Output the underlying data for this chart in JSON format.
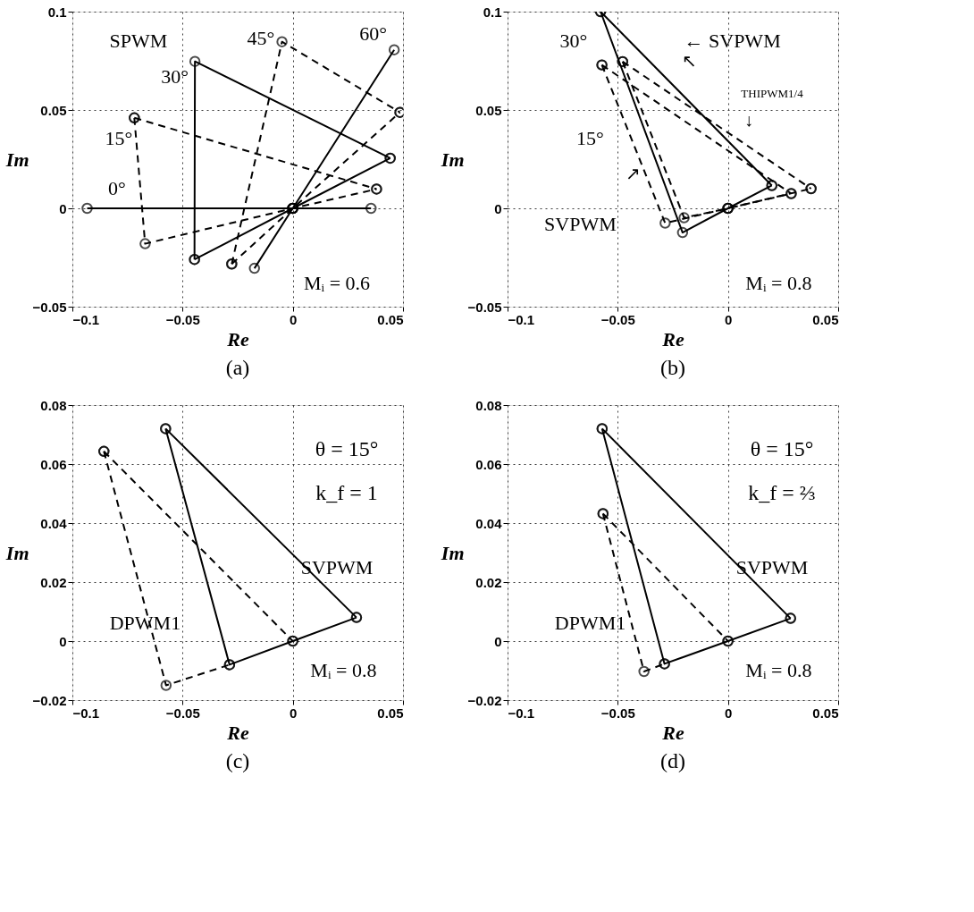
{
  "chart_data": [
    {
      "type": "line",
      "title": "(a)",
      "xlabel": "Re",
      "ylabel": "Im",
      "xlim": [
        -0.1,
        0.05
      ],
      "ylim": [
        -0.05,
        0.1
      ],
      "xticks": [
        -0.1,
        -0.05,
        0,
        0.05
      ],
      "yticks": [
        -0.05,
        0,
        0.05,
        0.1
      ],
      "grid": true,
      "marker": "circle",
      "series": [
        {
          "color": "#000000",
          "line_style": "solid",
          "x": [
            -0.0933,
            0,
            0.0355
          ],
          "values": [
            0,
            0,
            0
          ]
        },
        {
          "color": "#000000",
          "line_style": "dashed",
          "x": [
            -0.0719,
            0.038
          ],
          "values": [
            0.046,
            0.0098
          ]
        },
        {
          "color": "#000000",
          "line_style": "dashed",
          "x": [
            -0.0719,
            -0.067,
            0,
            0.038
          ],
          "values": [
            0.046,
            -0.018,
            0,
            0.0098
          ]
        },
        {
          "color": "#000000",
          "line_style": "solid",
          "x": [
            -0.0446,
            -0.0444,
            0.0442
          ],
          "values": [
            -0.026,
            0.0747,
            0.0255
          ]
        },
        {
          "color": "#000000",
          "line_style": "solid",
          "x": [
            -0.0446,
            0,
            0.0442
          ],
          "values": [
            -0.026,
            0,
            0.0255
          ]
        },
        {
          "color": "#000000",
          "line_style": "dashed",
          "x": [
            -0.0277,
            -0.0049,
            0.0486
          ],
          "values": [
            -0.0283,
            0.0847,
            0.0488
          ]
        },
        {
          "color": "#000000",
          "line_style": "dashed",
          "x": [
            -0.0277,
            0,
            0.0486
          ],
          "values": [
            -0.0283,
            0,
            0.0488
          ]
        },
        {
          "color": "#000000",
          "line_style": "solid",
          "x": [
            -0.0174,
            0,
            0.046
          ],
          "values": [
            -0.0305,
            0,
            0.0806
          ]
        }
      ],
      "annotations": [
        "SPWM",
        "0°",
        "15°",
        "30°",
        "45°",
        "60°",
        "Mᵢ = 0.6"
      ]
    },
    {
      "type": "line",
      "title": "(b)",
      "xlabel": "Re",
      "ylabel": "Im",
      "xlim": [
        -0.1,
        0.05
      ],
      "ylim": [
        -0.05,
        0.1
      ],
      "xticks": [
        -0.1,
        -0.05,
        0,
        0.05
      ],
      "yticks": [
        -0.05,
        0,
        0.05,
        0.1
      ],
      "grid": true,
      "marker": "circle",
      "series": [
        {
          "color": "#000000",
          "line_style": "solid",
          "x": [
            -0.0578,
            0.0199
          ],
          "values": [
            0.1,
            0.0116
          ]
        },
        {
          "color": "#000000",
          "line_style": "solid",
          "x": [
            -0.0578,
            -0.0206,
            0,
            0.0199
          ],
          "values": [
            0.1,
            -0.0123,
            0,
            0.0116
          ]
        },
        {
          "color": "#000000",
          "line_style": "dashed",
          "x": [
            -0.0478,
            0.0377
          ],
          "values": [
            0.0746,
            0.01
          ]
        },
        {
          "color": "#000000",
          "line_style": "dashed",
          "x": [
            -0.0478,
            -0.0199,
            0,
            0.0377
          ],
          "values": [
            0.0746,
            -0.0048,
            0,
            0.01
          ]
        },
        {
          "color": "#000000",
          "line_style": "dashed",
          "x": [
            -0.0572,
            0.0287
          ],
          "values": [
            0.0729,
            0.0075
          ]
        },
        {
          "color": "#000000",
          "line_style": "dashed",
          "x": [
            -0.0572,
            -0.0285,
            0,
            0.0287
          ],
          "values": [
            0.0729,
            -0.0075,
            0,
            0.0075
          ]
        }
      ],
      "annotations": [
        "30°",
        "15°",
        "← SVPWM",
        "↖",
        "THIPWM1/4",
        "↓",
        "↗",
        "SVPWM",
        "Mᵢ = 0.8"
      ]
    },
    {
      "type": "line",
      "title": "(c)",
      "xlabel": "Re",
      "ylabel": "Im",
      "xlim": [
        -0.1,
        0.05
      ],
      "ylim": [
        -0.02,
        0.08
      ],
      "xticks": [
        -0.1,
        -0.05,
        0,
        0.05
      ],
      "yticks": [
        -0.02,
        0,
        0.02,
        0.04,
        0.06,
        0.08
      ],
      "grid": true,
      "marker": "circle",
      "series": [
        {
          "color": "#000000",
          "line_style": "solid",
          "x": [
            -0.0577,
            0.0289
          ],
          "values": [
            0.072,
            0.008
          ]
        },
        {
          "color": "#000000",
          "line_style": "solid",
          "x": [
            -0.0577,
            -0.0287,
            0,
            0.0289
          ],
          "values": [
            0.072,
            -0.008,
            0,
            0.008
          ]
        },
        {
          "color": "#000000",
          "line_style": "dashed",
          "x": [
            -0.0857,
            0
          ],
          "values": [
            0.0643,
            0
          ]
        },
        {
          "color": "#000000",
          "line_style": "dashed",
          "x": [
            -0.0857,
            -0.0575,
            -0.0287
          ],
          "values": [
            0.0643,
            -0.015,
            -0.008
          ]
        }
      ],
      "annotations": [
        "θ = 15°",
        "k_f = 1",
        "SVPWM",
        "DPWM1",
        "Mᵢ = 0.8"
      ]
    },
    {
      "type": "line",
      "title": "(d)",
      "xlabel": "Re",
      "ylabel": "Im",
      "xlim": [
        -0.1,
        0.05
      ],
      "ylim": [
        -0.02,
        0.08
      ],
      "xticks": [
        -0.1,
        -0.05,
        0,
        0.05
      ],
      "yticks": [
        -0.02,
        0,
        0.02,
        0.04,
        0.06,
        0.08
      ],
      "grid": true,
      "marker": "circle",
      "series": [
        {
          "color": "#000000",
          "line_style": "solid",
          "x": [
            -0.0571,
            0.0284
          ],
          "values": [
            0.072,
            0.0077
          ]
        },
        {
          "color": "#000000",
          "line_style": "solid",
          "x": [
            -0.0571,
            -0.0288,
            0,
            0.0284
          ],
          "values": [
            0.072,
            -0.0077,
            0,
            0.0077
          ]
        },
        {
          "color": "#000000",
          "line_style": "dashed",
          "x": [
            -0.0567,
            0
          ],
          "values": [
            0.0432,
            0
          ]
        },
        {
          "color": "#000000",
          "line_style": "dashed",
          "x": [
            -0.0567,
            -0.0381,
            -0.0288
          ],
          "values": [
            0.0432,
            -0.0103,
            -0.0077
          ]
        }
      ],
      "annotations": [
        "θ = 15°",
        "k_f = ⅔",
        "SVPWM",
        "DPWM1",
        "Mᵢ = 0.8"
      ]
    }
  ]
}
